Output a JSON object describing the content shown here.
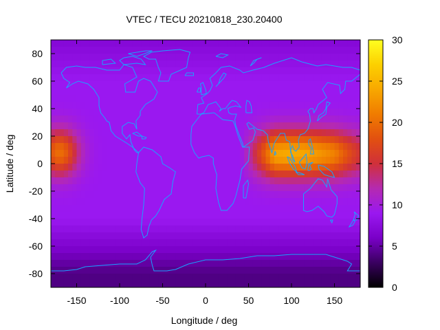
{
  "chart_data": {
    "type": "heatmap",
    "title": "VTEC / TECU 20210818_230.20400",
    "xlabel": "Longitude / deg",
    "ylabel": "Latitude / deg",
    "xlim": [
      -180,
      180
    ],
    "ylim": [
      -90,
      90
    ],
    "xticks": [
      -150,
      -100,
      -50,
      0,
      50,
      100,
      150
    ],
    "yticks": [
      80,
      60,
      40,
      20,
      0,
      -20,
      -40,
      -60,
      -80
    ],
    "colorbar": {
      "range": [
        0,
        30
      ],
      "ticks": [
        0,
        5,
        10,
        15,
        20,
        25,
        30
      ],
      "stops": [
        {
          "value": 0,
          "color": "#000000"
        },
        {
          "value": 3,
          "color": "#3a0060"
        },
        {
          "value": 6,
          "color": "#7a00c8"
        },
        {
          "value": 9,
          "color": "#9a18f0"
        },
        {
          "value": 12,
          "color": "#b52ab0"
        },
        {
          "value": 15,
          "color": "#d0303a"
        },
        {
          "value": 18,
          "color": "#e25010"
        },
        {
          "value": 21,
          "color": "#f07c00"
        },
        {
          "value": 24,
          "color": "#f8a800"
        },
        {
          "value": 27,
          "color": "#fcd000"
        },
        {
          "value": 30,
          "color": "#ffff20"
        }
      ]
    },
    "grid": "10 deg longitude x 5 deg latitude cells, VTEC in TECU",
    "features": {
      "equatorial_maximum_east": {
        "lon_range": [
          40,
          180
        ],
        "lat_range": [
          -15,
          30
        ],
        "peak_lon": 100,
        "peak_lat": 5,
        "peak_value": 24
      },
      "equatorial_maximum_west": {
        "lon_range": [
          -180,
          -140
        ],
        "lat_range": [
          -15,
          30
        ],
        "peak_lon": -170,
        "peak_lat": 10,
        "peak_value": 20
      },
      "background_value": 9,
      "southern_low": {
        "lat": -70,
        "value": 4
      }
    },
    "overlay": "coastline outlines (cyan)"
  }
}
